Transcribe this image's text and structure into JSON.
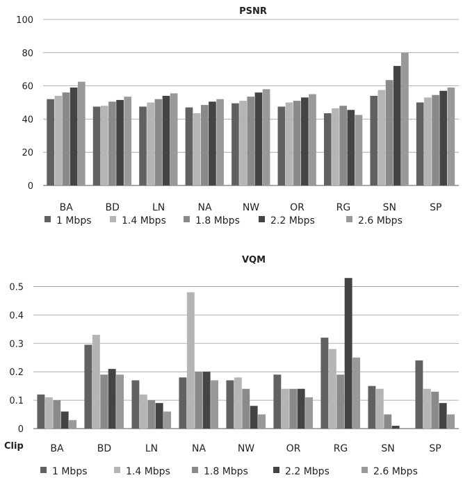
{
  "colors": [
    "#616161",
    "#b5b5b5",
    "#8a8a8a",
    "#444444",
    "#999999"
  ],
  "chart_data": [
    {
      "type": "bar",
      "title": "PSNR",
      "xlabel": "",
      "ylabel": "",
      "ylim": [
        0,
        100
      ],
      "yticks": [
        "0",
        "20",
        "40",
        "60",
        "80",
        "100"
      ],
      "grid": true,
      "legend_position": "bottom",
      "categories": [
        "BA",
        "BD",
        "LN",
        "NA",
        "NW",
        "OR",
        "RG",
        "SN",
        "SP"
      ],
      "series": [
        {
          "name": "1 Mbps",
          "values": [
            52,
            47.5,
            47.5,
            47,
            49.5,
            47.5,
            43.5,
            54,
            50
          ]
        },
        {
          "name": "1.4 Mbps",
          "values": [
            54,
            48,
            50,
            43.5,
            51,
            50,
            46.5,
            57.5,
            53
          ]
        },
        {
          "name": "1.8 Mbps",
          "values": [
            56,
            50.5,
            52,
            48.5,
            53.5,
            51,
            48,
            63.5,
            54.5
          ]
        },
        {
          "name": "2.2 Mbps",
          "values": [
            59,
            51.5,
            54,
            50.5,
            56,
            53,
            45.5,
            72,
            57
          ]
        },
        {
          "name": "2.6 Mbps",
          "values": [
            62.5,
            53.5,
            55.5,
            52,
            58,
            55,
            42.5,
            80,
            59
          ]
        }
      ]
    },
    {
      "type": "bar",
      "title": "VQM",
      "xlabel": "Clip",
      "ylabel": "",
      "ylim": [
        0,
        0.55
      ],
      "yticks": [
        "0",
        "0.1",
        "0.2",
        "0.3",
        "0.4",
        "0.5"
      ],
      "grid": true,
      "legend_position": "bottom",
      "categories": [
        "BA",
        "BD",
        "LN",
        "NA",
        "NW",
        "OR",
        "RG",
        "SN",
        "SP"
      ],
      "series": [
        {
          "name": "1 Mbps",
          "values": [
            0.12,
            0.295,
            0.17,
            0.18,
            0.17,
            0.19,
            0.32,
            0.15,
            0.24
          ]
        },
        {
          "name": "1.4 Mbps",
          "values": [
            0.11,
            0.33,
            0.12,
            0.48,
            0.18,
            0.14,
            0.28,
            0.14,
            0.14
          ]
        },
        {
          "name": "1.8 Mbps",
          "values": [
            0.1,
            0.19,
            0.1,
            0.2,
            0.14,
            0.14,
            0.19,
            0.05,
            0.13
          ]
        },
        {
          "name": "2.2 Mbps",
          "values": [
            0.06,
            0.21,
            0.09,
            0.2,
            0.08,
            0.14,
            0.53,
            0.01,
            0.09
          ]
        },
        {
          "name": "2.6 Mbps",
          "values": [
            0.03,
            0.19,
            0.06,
            0.17,
            0.05,
            0.11,
            0.25,
            0.0,
            0.05
          ]
        }
      ]
    }
  ]
}
